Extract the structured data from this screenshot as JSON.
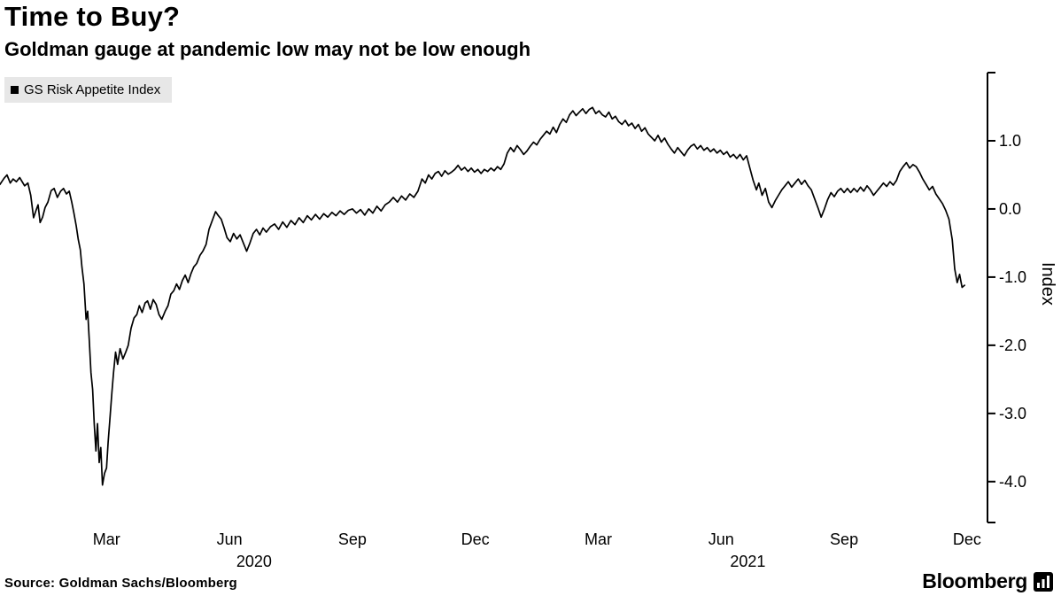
{
  "header": {
    "title": "Time to Buy?",
    "subtitle": "Goldman gauge at pandemic low may not be low enough"
  },
  "legend": {
    "label": "GS Risk Appetite Index",
    "swatch_color": "#000000"
  },
  "footer": {
    "source": "Source: Goldman Sachs/Bloomberg",
    "brand": "Bloomberg"
  },
  "chart_data": {
    "type": "line",
    "title": "Time to Buy?",
    "subtitle": "Goldman gauge at pandemic low may not be low enough",
    "ylabel": "Index",
    "line_color": "#000000",
    "background": "#ffffff",
    "grid": false,
    "legend_position": "top-left",
    "axis_side": "right",
    "ylim": [
      -4.6,
      2.0
    ],
    "xlim_months": [
      -0.6,
      23.5
    ],
    "x_unit": "months since Jan 2020",
    "y_ticks": [
      1.0,
      0.0,
      -1.0,
      -2.0,
      -3.0,
      -4.0
    ],
    "x_ticks": [
      {
        "m": 2,
        "label": "Mar"
      },
      {
        "m": 5,
        "label": "Jun"
      },
      {
        "m": 8,
        "label": "Sep"
      },
      {
        "m": 11,
        "label": "Dec"
      },
      {
        "m": 14,
        "label": "Mar"
      },
      {
        "m": 17,
        "label": "Jun"
      },
      {
        "m": 20,
        "label": "Sep"
      },
      {
        "m": 23,
        "label": "Dec"
      }
    ],
    "year_labels": [
      {
        "m": 5.6,
        "label": "2020"
      },
      {
        "m": 17.65,
        "label": "2021"
      }
    ],
    "series": [
      {
        "name": "GS Risk Appetite Index",
        "points": [
          [
            -0.6,
            0.36
          ],
          [
            -0.5,
            0.45
          ],
          [
            -0.43,
            0.5
          ],
          [
            -0.35,
            0.38
          ],
          [
            -0.28,
            0.44
          ],
          [
            -0.2,
            0.4
          ],
          [
            -0.12,
            0.46
          ],
          [
            0.0,
            0.34
          ],
          [
            0.08,
            0.38
          ],
          [
            0.15,
            0.2
          ],
          [
            0.22,
            -0.13
          ],
          [
            0.28,
            -0.02
          ],
          [
            0.33,
            0.06
          ],
          [
            0.38,
            -0.2
          ],
          [
            0.44,
            -0.12
          ],
          [
            0.5,
            0.02
          ],
          [
            0.57,
            0.1
          ],
          [
            0.65,
            0.27
          ],
          [
            0.72,
            0.3
          ],
          [
            0.8,
            0.17
          ],
          [
            0.88,
            0.26
          ],
          [
            0.95,
            0.3
          ],
          [
            1.02,
            0.22
          ],
          [
            1.09,
            0.26
          ],
          [
            1.15,
            0.1
          ],
          [
            1.2,
            -0.05
          ],
          [
            1.26,
            -0.25
          ],
          [
            1.31,
            -0.45
          ],
          [
            1.36,
            -0.6
          ],
          [
            1.4,
            -0.85
          ],
          [
            1.45,
            -1.1
          ],
          [
            1.5,
            -1.62
          ],
          [
            1.54,
            -1.5
          ],
          [
            1.58,
            -1.95
          ],
          [
            1.62,
            -2.4
          ],
          [
            1.66,
            -2.65
          ],
          [
            1.7,
            -3.15
          ],
          [
            1.74,
            -3.55
          ],
          [
            1.78,
            -3.15
          ],
          [
            1.82,
            -3.72
          ],
          [
            1.86,
            -3.5
          ],
          [
            1.9,
            -4.05
          ],
          [
            1.95,
            -3.88
          ],
          [
            2.0,
            -3.8
          ],
          [
            2.04,
            -3.42
          ],
          [
            2.08,
            -3.1
          ],
          [
            2.13,
            -2.7
          ],
          [
            2.17,
            -2.4
          ],
          [
            2.22,
            -2.1
          ],
          [
            2.27,
            -2.28
          ],
          [
            2.33,
            -2.05
          ],
          [
            2.4,
            -2.2
          ],
          [
            2.47,
            -2.1
          ],
          [
            2.53,
            -2.0
          ],
          [
            2.6,
            -1.75
          ],
          [
            2.67,
            -1.6
          ],
          [
            2.74,
            -1.55
          ],
          [
            2.8,
            -1.42
          ],
          [
            2.87,
            -1.52
          ],
          [
            2.94,
            -1.38
          ],
          [
            3.0,
            -1.35
          ],
          [
            3.07,
            -1.47
          ],
          [
            3.14,
            -1.33
          ],
          [
            3.21,
            -1.4
          ],
          [
            3.28,
            -1.55
          ],
          [
            3.35,
            -1.62
          ],
          [
            3.43,
            -1.5
          ],
          [
            3.5,
            -1.42
          ],
          [
            3.57,
            -1.25
          ],
          [
            3.64,
            -1.2
          ],
          [
            3.71,
            -1.1
          ],
          [
            3.78,
            -1.18
          ],
          [
            3.85,
            -1.05
          ],
          [
            3.92,
            -0.97
          ],
          [
            3.99,
            -1.08
          ],
          [
            4.06,
            -0.95
          ],
          [
            4.13,
            -0.85
          ],
          [
            4.2,
            -0.8
          ],
          [
            4.28,
            -0.68
          ],
          [
            4.35,
            -0.62
          ],
          [
            4.43,
            -0.52
          ],
          [
            4.5,
            -0.3
          ],
          [
            4.58,
            -0.17
          ],
          [
            4.66,
            -0.04
          ],
          [
            4.73,
            -0.1
          ],
          [
            4.8,
            -0.15
          ],
          [
            4.87,
            -0.28
          ],
          [
            4.94,
            -0.42
          ],
          [
            5.02,
            -0.48
          ],
          [
            5.1,
            -0.36
          ],
          [
            5.18,
            -0.44
          ],
          [
            5.26,
            -0.38
          ],
          [
            5.34,
            -0.5
          ],
          [
            5.42,
            -0.62
          ],
          [
            5.5,
            -0.5
          ],
          [
            5.58,
            -0.36
          ],
          [
            5.66,
            -0.3
          ],
          [
            5.74,
            -0.38
          ],
          [
            5.82,
            -0.28
          ],
          [
            5.9,
            -0.34
          ],
          [
            6.0,
            -0.26
          ],
          [
            6.1,
            -0.22
          ],
          [
            6.2,
            -0.3
          ],
          [
            6.3,
            -0.19
          ],
          [
            6.4,
            -0.27
          ],
          [
            6.5,
            -0.17
          ],
          [
            6.6,
            -0.23
          ],
          [
            6.7,
            -0.13
          ],
          [
            6.8,
            -0.2
          ],
          [
            6.9,
            -0.1
          ],
          [
            7.0,
            -0.16
          ],
          [
            7.1,
            -0.08
          ],
          [
            7.2,
            -0.15
          ],
          [
            7.3,
            -0.07
          ],
          [
            7.4,
            -0.12
          ],
          [
            7.5,
            -0.05
          ],
          [
            7.6,
            -0.1
          ],
          [
            7.7,
            -0.03
          ],
          [
            7.8,
            -0.08
          ],
          [
            7.9,
            -0.02
          ],
          [
            8.0,
            0.0
          ],
          [
            8.1,
            -0.06
          ],
          [
            8.2,
            -0.01
          ],
          [
            8.3,
            -0.09
          ],
          [
            8.4,
            0.0
          ],
          [
            8.5,
            -0.06
          ],
          [
            8.6,
            0.04
          ],
          [
            8.7,
            -0.03
          ],
          [
            8.8,
            0.06
          ],
          [
            8.9,
            0.1
          ],
          [
            9.0,
            0.17
          ],
          [
            9.1,
            0.1
          ],
          [
            9.2,
            0.19
          ],
          [
            9.3,
            0.13
          ],
          [
            9.4,
            0.22
          ],
          [
            9.5,
            0.17
          ],
          [
            9.6,
            0.26
          ],
          [
            9.7,
            0.44
          ],
          [
            9.78,
            0.38
          ],
          [
            9.86,
            0.5
          ],
          [
            9.94,
            0.44
          ],
          [
            10.02,
            0.52
          ],
          [
            10.1,
            0.55
          ],
          [
            10.18,
            0.48
          ],
          [
            10.26,
            0.56
          ],
          [
            10.34,
            0.51
          ],
          [
            10.42,
            0.54
          ],
          [
            10.5,
            0.58
          ],
          [
            10.58,
            0.64
          ],
          [
            10.66,
            0.57
          ],
          [
            10.74,
            0.61
          ],
          [
            10.82,
            0.55
          ],
          [
            10.9,
            0.6
          ],
          [
            10.98,
            0.54
          ],
          [
            11.06,
            0.58
          ],
          [
            11.14,
            0.52
          ],
          [
            11.22,
            0.58
          ],
          [
            11.3,
            0.55
          ],
          [
            11.38,
            0.6
          ],
          [
            11.46,
            0.56
          ],
          [
            11.54,
            0.62
          ],
          [
            11.62,
            0.58
          ],
          [
            11.7,
            0.66
          ],
          [
            11.78,
            0.82
          ],
          [
            11.86,
            0.9
          ],
          [
            11.94,
            0.84
          ],
          [
            12.02,
            0.93
          ],
          [
            12.1,
            0.87
          ],
          [
            12.18,
            0.8
          ],
          [
            12.26,
            0.85
          ],
          [
            12.34,
            0.92
          ],
          [
            12.42,
            0.98
          ],
          [
            12.5,
            0.94
          ],
          [
            12.58,
            1.02
          ],
          [
            12.66,
            1.08
          ],
          [
            12.74,
            1.14
          ],
          [
            12.82,
            1.1
          ],
          [
            12.9,
            1.2
          ],
          [
            12.98,
            1.12
          ],
          [
            13.06,
            1.24
          ],
          [
            13.14,
            1.32
          ],
          [
            13.22,
            1.27
          ],
          [
            13.3,
            1.38
          ],
          [
            13.38,
            1.44
          ],
          [
            13.46,
            1.37
          ],
          [
            13.54,
            1.42
          ],
          [
            13.62,
            1.47
          ],
          [
            13.7,
            1.4
          ],
          [
            13.78,
            1.46
          ],
          [
            13.86,
            1.49
          ],
          [
            13.94,
            1.4
          ],
          [
            14.02,
            1.44
          ],
          [
            14.1,
            1.38
          ],
          [
            14.18,
            1.35
          ],
          [
            14.26,
            1.42
          ],
          [
            14.34,
            1.32
          ],
          [
            14.42,
            1.36
          ],
          [
            14.5,
            1.28
          ],
          [
            14.58,
            1.24
          ],
          [
            14.66,
            1.3
          ],
          [
            14.74,
            1.22
          ],
          [
            14.82,
            1.26
          ],
          [
            14.9,
            1.18
          ],
          [
            14.98,
            1.24
          ],
          [
            15.06,
            1.14
          ],
          [
            15.14,
            1.19
          ],
          [
            15.22,
            1.1
          ],
          [
            15.3,
            1.05
          ],
          [
            15.38,
            1.0
          ],
          [
            15.46,
            1.08
          ],
          [
            15.54,
            0.98
          ],
          [
            15.62,
            1.04
          ],
          [
            15.7,
            0.95
          ],
          [
            15.78,
            0.88
          ],
          [
            15.86,
            0.82
          ],
          [
            15.94,
            0.9
          ],
          [
            16.02,
            0.84
          ],
          [
            16.1,
            0.78
          ],
          [
            16.18,
            0.86
          ],
          [
            16.26,
            0.92
          ],
          [
            16.34,
            0.95
          ],
          [
            16.42,
            0.88
          ],
          [
            16.5,
            0.93
          ],
          [
            16.58,
            0.86
          ],
          [
            16.66,
            0.9
          ],
          [
            16.74,
            0.84
          ],
          [
            16.82,
            0.88
          ],
          [
            16.9,
            0.82
          ],
          [
            16.98,
            0.86
          ],
          [
            17.06,
            0.8
          ],
          [
            17.14,
            0.84
          ],
          [
            17.22,
            0.76
          ],
          [
            17.3,
            0.8
          ],
          [
            17.38,
            0.74
          ],
          [
            17.46,
            0.8
          ],
          [
            17.54,
            0.72
          ],
          [
            17.62,
            0.78
          ],
          [
            17.7,
            0.6
          ],
          [
            17.78,
            0.42
          ],
          [
            17.86,
            0.28
          ],
          [
            17.92,
            0.38
          ],
          [
            18.0,
            0.2
          ],
          [
            18.08,
            0.3
          ],
          [
            18.16,
            0.1
          ],
          [
            18.24,
            0.02
          ],
          [
            18.32,
            0.12
          ],
          [
            18.4,
            0.2
          ],
          [
            18.48,
            0.28
          ],
          [
            18.56,
            0.34
          ],
          [
            18.64,
            0.4
          ],
          [
            18.72,
            0.32
          ],
          [
            18.8,
            0.38
          ],
          [
            18.88,
            0.44
          ],
          [
            18.96,
            0.36
          ],
          [
            19.04,
            0.42
          ],
          [
            19.12,
            0.34
          ],
          [
            19.2,
            0.28
          ],
          [
            19.28,
            0.15
          ],
          [
            19.36,
            0.02
          ],
          [
            19.44,
            -0.12
          ],
          [
            19.52,
            0.0
          ],
          [
            19.6,
            0.14
          ],
          [
            19.68,
            0.24
          ],
          [
            19.76,
            0.18
          ],
          [
            19.84,
            0.26
          ],
          [
            19.92,
            0.3
          ],
          [
            20.0,
            0.24
          ],
          [
            20.08,
            0.3
          ],
          [
            20.16,
            0.24
          ],
          [
            20.24,
            0.3
          ],
          [
            20.32,
            0.25
          ],
          [
            20.4,
            0.32
          ],
          [
            20.48,
            0.26
          ],
          [
            20.56,
            0.34
          ],
          [
            20.64,
            0.28
          ],
          [
            20.72,
            0.2
          ],
          [
            20.8,
            0.26
          ],
          [
            20.88,
            0.32
          ],
          [
            20.96,
            0.38
          ],
          [
            21.04,
            0.33
          ],
          [
            21.12,
            0.4
          ],
          [
            21.2,
            0.35
          ],
          [
            21.28,
            0.42
          ],
          [
            21.36,
            0.55
          ],
          [
            21.44,
            0.62
          ],
          [
            21.52,
            0.68
          ],
          [
            21.6,
            0.6
          ],
          [
            21.68,
            0.65
          ],
          [
            21.76,
            0.62
          ],
          [
            21.84,
            0.54
          ],
          [
            21.92,
            0.44
          ],
          [
            22.0,
            0.36
          ],
          [
            22.08,
            0.28
          ],
          [
            22.16,
            0.33
          ],
          [
            22.24,
            0.22
          ],
          [
            22.32,
            0.15
          ],
          [
            22.4,
            0.08
          ],
          [
            22.48,
            -0.02
          ],
          [
            22.56,
            -0.15
          ],
          [
            22.64,
            -0.45
          ],
          [
            22.7,
            -0.88
          ],
          [
            22.76,
            -1.08
          ],
          [
            22.82,
            -0.96
          ],
          [
            22.88,
            -1.15
          ],
          [
            22.94,
            -1.12
          ]
        ]
      }
    ]
  }
}
